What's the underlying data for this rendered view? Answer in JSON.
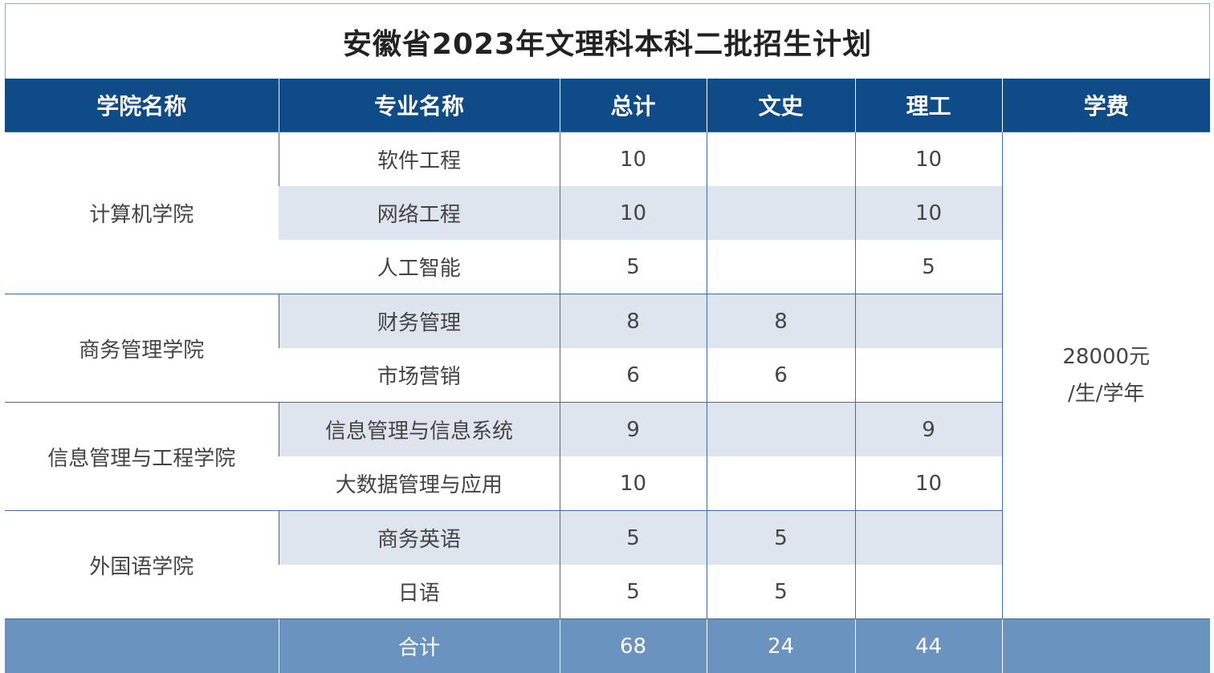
{
  "title": "安徽省2023年文理科本科二批招生计划",
  "headers": {
    "college": "学院名称",
    "major": "专业名称",
    "total": "总计",
    "arts": "文史",
    "science": "理工",
    "fee": "学费"
  },
  "groups": [
    {
      "college": "计算机学院",
      "majors": [
        {
          "name": "软件工程",
          "total": "10",
          "arts": "",
          "science": "10"
        },
        {
          "name": "网络工程",
          "total": "10",
          "arts": "",
          "science": "10"
        },
        {
          "name": "人工智能",
          "total": "5",
          "arts": "",
          "science": "5"
        }
      ]
    },
    {
      "college": "商务管理学院",
      "majors": [
        {
          "name": "财务管理",
          "total": "8",
          "arts": "8",
          "science": ""
        },
        {
          "name": "市场营销",
          "total": "6",
          "arts": "6",
          "science": ""
        }
      ]
    },
    {
      "college": "信息管理与工程学院",
      "majors": [
        {
          "name": "信息管理与信息系统",
          "total": "9",
          "arts": "",
          "science": "9"
        },
        {
          "name": "大数据管理与应用",
          "total": "10",
          "arts": "",
          "science": "10"
        }
      ]
    },
    {
      "college": "外国语学院",
      "majors": [
        {
          "name": "商务英语",
          "total": "5",
          "arts": "5",
          "science": ""
        },
        {
          "name": "日语",
          "total": "5",
          "arts": "5",
          "science": ""
        }
      ]
    }
  ],
  "fee": {
    "line1": "28000元",
    "line2": "/生/学年"
  },
  "totals": {
    "label": "合计",
    "total": "68",
    "arts": "24",
    "science": "44"
  },
  "colors": {
    "header_bg": "#0f4c87",
    "row_shade": "#dfe5ef",
    "total_bg": "#6b93c0"
  }
}
